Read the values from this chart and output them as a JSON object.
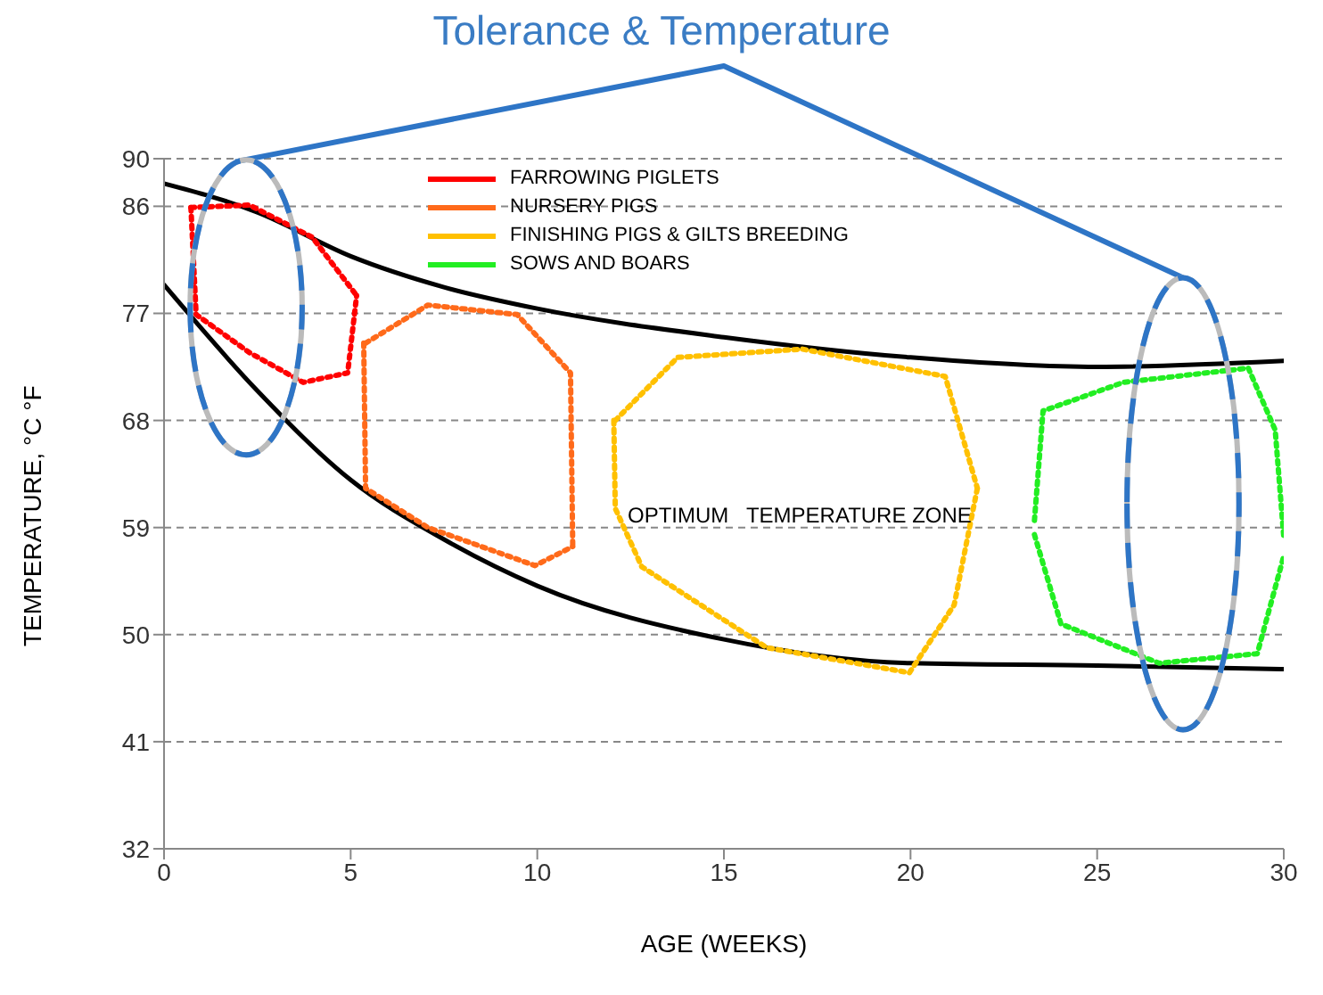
{
  "chart_data": {
    "type": "line",
    "title": "Tolerance  & Temperature",
    "xlabel": "AGE (WEEKS)",
    "ylabel": "TEMPERATURE, °C   °F",
    "xlim": [
      0,
      30
    ],
    "xticks": [
      0,
      5,
      10,
      15,
      20,
      25,
      30
    ],
    "ylim": [
      32,
      90
    ],
    "yticks": [
      32,
      41,
      50,
      59,
      68,
      77,
      86,
      90
    ],
    "grid": "y",
    "legend": "top left",
    "marker": "none",
    "annotations": [
      "OPTIMUM   TEMPERATURE ZONE"
    ],
    "series": [
      {
        "color": "#000000",
        "line_style": "solid",
        "x": [
          0,
          2.5,
          5,
          7.5,
          10,
          15,
          20,
          25,
          30
        ],
        "values": [
          87.9,
          85.5,
          81.8,
          79.2,
          77.4,
          75,
          73.3,
          72.5,
          73
        ]
      },
      {
        "color": "#000000",
        "line_style": "solid",
        "x": [
          0,
          2.5,
          5,
          7.5,
          10,
          15,
          20,
          25,
          30
        ],
        "values": [
          79.4,
          70.5,
          63,
          58,
          54.1,
          49.6,
          47.6,
          47.4,
          47.1
        ]
      },
      {
        "name": "FARROWING PIGLETS",
        "color": "#ff0000",
        "line_style": "dotted",
        "x": [
          0.72,
          2.29,
          3.97,
          5.16
        ],
        "values": [
          85.9,
          86.1,
          83.4,
          78.5
        ]
      },
      {
        "color": "#ff0000",
        "line_style": "dotted",
        "x": [
          0.72,
          0.86,
          2.29,
          3.73,
          4.92,
          5.16
        ],
        "values": [
          85.9,
          76.9,
          73.7,
          71.2,
          72,
          78.5
        ]
      },
      {
        "name": "NURSERY PIGS",
        "color": "#ff6a1a",
        "line_style": "dotted",
        "x": [
          5.4,
          7.07,
          9.46,
          10.89,
          10.95
        ],
        "values": [
          74.5,
          77.7,
          76.9,
          72,
          57.4
        ]
      },
      {
        "color": "#ff6a1a",
        "line_style": "dotted",
        "x": [
          5.35,
          5.4,
          7.07,
          9.94,
          10.95
        ],
        "values": [
          74.5,
          62.3,
          59,
          55.8,
          57.4
        ]
      },
      {
        "name": "FINISHING PIGS & GILTS BREEDING",
        "color": "#ffc000",
        "line_style": "dotted",
        "x": [
          12.09,
          13.76,
          17.1,
          20.93,
          21.79
        ],
        "values": [
          68,
          73.3,
          74,
          71.7,
          62.3
        ]
      },
      {
        "color": "#ffc000",
        "line_style": "dotted",
        "x": [
          12.05,
          12.09,
          12.8,
          16.15,
          19.97,
          21.17,
          21.79
        ],
        "values": [
          68,
          60.6,
          55.7,
          48.9,
          46.8,
          52.5,
          62.3
        ]
      },
      {
        "name": "SOWS AND BOARS",
        "color": "#22ee22",
        "line_style": "dotted",
        "x": [
          23.32,
          23.55,
          25.7,
          29.05,
          29.77,
          30
        ],
        "values": [
          59.6,
          68.8,
          71.2,
          72.4,
          67.2,
          58.2
        ]
      },
      {
        "color": "#22ee22",
        "line_style": "dotted",
        "x": [
          23.32,
          24.03,
          26.66,
          29.29,
          30
        ],
        "values": [
          58.4,
          50.9,
          47.6,
          48.4,
          56.6
        ]
      }
    ]
  }
}
